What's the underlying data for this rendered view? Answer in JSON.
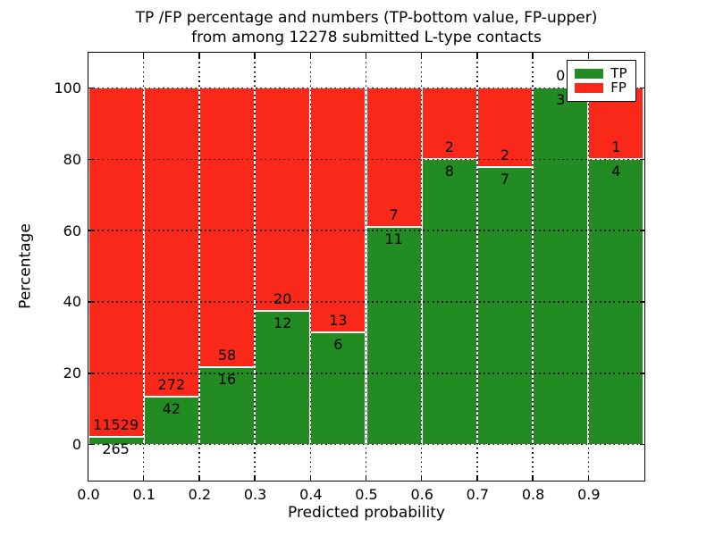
{
  "chart_data": {
    "type": "bar",
    "stacked": true,
    "normalized": "each probability bin scaled to 100 percent",
    "title_line1": "TP /FP percentage and numbers (TP-bottom value, FP-upper)",
    "title_line2": "from among 12278 submitted L-type contacts",
    "xlabel": "Predicted probability",
    "ylabel": "Percentage",
    "categories": [
      "0.0-0.1",
      "0.1-0.2",
      "0.2-0.3",
      "0.3-0.4",
      "0.4-0.5",
      "0.5-0.6",
      "0.6-0.7",
      "0.7-0.8",
      "0.8-0.9",
      "0.9-1.0"
    ],
    "series": [
      {
        "name": "TP",
        "color": "#228b22",
        "values": [
          265,
          42,
          16,
          12,
          6,
          11,
          8,
          7,
          3,
          4
        ]
      },
      {
        "name": "FP",
        "color": "#fa2819",
        "values": [
          11529,
          272,
          58,
          20,
          13,
          7,
          2,
          2,
          0,
          1
        ]
      }
    ],
    "tp_percent_per_bin": [
      2.25,
      13.38,
      21.62,
      37.5,
      31.58,
      61.11,
      80.0,
      77.78,
      100.0,
      80.0
    ],
    "xlim": [
      0.0,
      1.0
    ],
    "ylim": [
      -10,
      110
    ],
    "xticks": [
      "0.0",
      "0.1",
      "0.2",
      "0.3",
      "0.4",
      "0.5",
      "0.6",
      "0.7",
      "0.8",
      "0.9"
    ],
    "yticks": [
      0,
      20,
      40,
      60,
      80,
      100
    ],
    "grid": "dotted black, drawn above bars",
    "legend_position": "upper right",
    "bar_edge_color": "#ffffff",
    "text_color": "#000000",
    "background_color": "#ffffff"
  }
}
